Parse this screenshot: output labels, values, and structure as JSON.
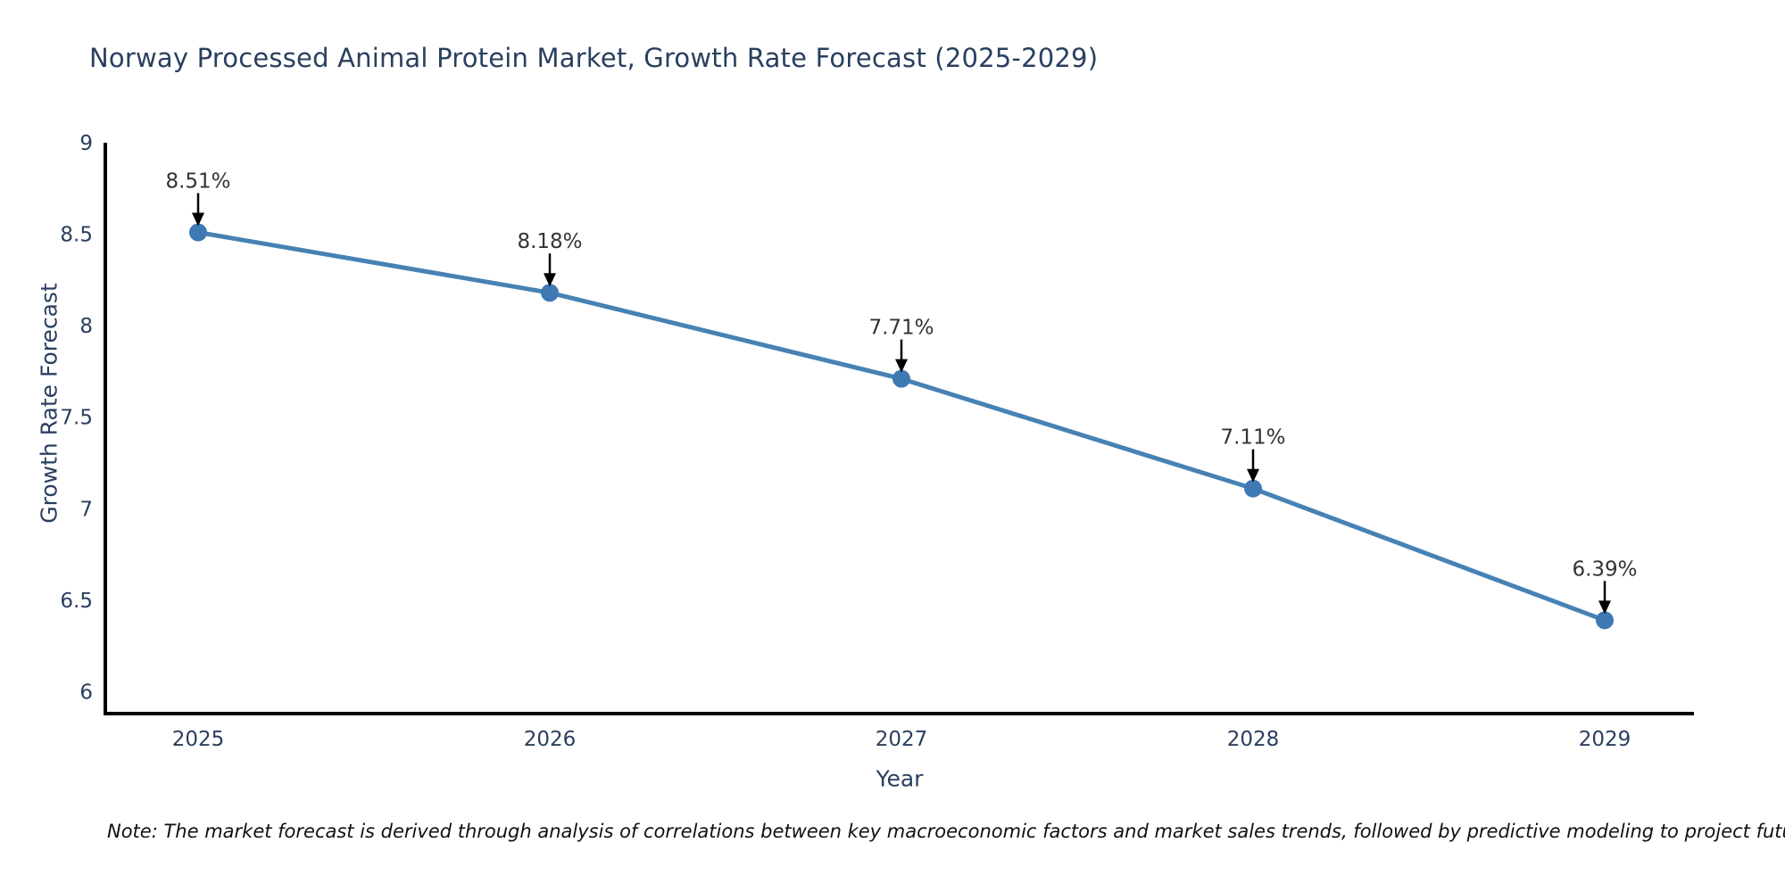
{
  "note": "Note: The market forecast is derived through analysis of correlations between key macroeconomic factors and market sales trends, followed by predictive modeling to project future sales",
  "chart_data": {
    "type": "line",
    "title": "Norway Processed Animal Protein Market, Growth Rate Forecast (2025-2029)",
    "xlabel": "Year",
    "ylabel": "Growth Rate Forecast",
    "categories": [
      "2025",
      "2026",
      "2027",
      "2028",
      "2029"
    ],
    "series": [
      {
        "name": "Growth Rate Forecast",
        "values": [
          8.51,
          8.18,
          7.71,
          7.11,
          6.39
        ],
        "point_labels": [
          "8.51%",
          "8.18%",
          "7.71%",
          "7.11%",
          "6.39%"
        ]
      }
    ],
    "ytick_labels": [
      "6",
      "6.5",
      "7",
      "7.5",
      "8",
      "8.5",
      "9"
    ],
    "ytick_values": [
      6,
      6.5,
      7,
      7.5,
      8,
      8.5,
      9
    ],
    "ylim": [
      5.88,
      9
    ],
    "grid": false,
    "legend_position": "none",
    "annotation_style": "down-arrow",
    "colors": {
      "line": "#4682b4",
      "marker": "#3e79b4",
      "axis": "#000000",
      "tick_text": "#2a3f5f",
      "title_text": "#2a3f5f",
      "annotation_text": "#333333",
      "arrow": "#000000",
      "background": "#ffffff"
    }
  }
}
